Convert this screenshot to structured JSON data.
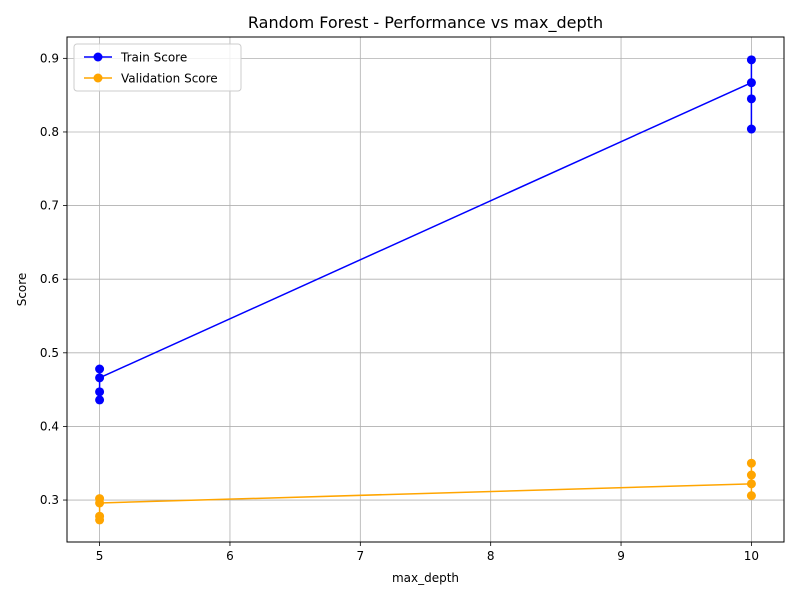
{
  "chart_data": {
    "type": "line",
    "title": "Random Forest - Performance vs max_depth",
    "xlabel": "max_depth",
    "ylabel": "Score",
    "xlim": [
      4.75,
      10.25
    ],
    "ylim": [
      0.243,
      0.929
    ],
    "x_ticks": [
      5,
      6,
      7,
      8,
      9,
      10
    ],
    "y_ticks": [
      0.3,
      0.4,
      0.5,
      0.6,
      0.7,
      0.8,
      0.9
    ],
    "grid": true,
    "legend_position": "top-left",
    "series": [
      {
        "name": "Train Score",
        "color": "#0000ff",
        "line": [
          [
            5,
            0.466
          ],
          [
            10,
            0.867
          ]
        ],
        "points": [
          {
            "x": 5,
            "y": 0.478
          },
          {
            "x": 5,
            "y": 0.466
          },
          {
            "x": 5,
            "y": 0.447
          },
          {
            "x": 5,
            "y": 0.436
          },
          {
            "x": 10,
            "y": 0.898
          },
          {
            "x": 10,
            "y": 0.867
          },
          {
            "x": 10,
            "y": 0.845
          },
          {
            "x": 10,
            "y": 0.804
          }
        ]
      },
      {
        "name": "Validation Score",
        "color": "#ffa500",
        "line": [
          [
            5,
            0.296
          ],
          [
            10,
            0.322
          ]
        ],
        "points": [
          {
            "x": 5,
            "y": 0.302
          },
          {
            "x": 5,
            "y": 0.296
          },
          {
            "x": 5,
            "y": 0.278
          },
          {
            "x": 5,
            "y": 0.273
          },
          {
            "x": 10,
            "y": 0.35
          },
          {
            "x": 10,
            "y": 0.334
          },
          {
            "x": 10,
            "y": 0.322
          },
          {
            "x": 10,
            "y": 0.306
          }
        ]
      }
    ]
  }
}
